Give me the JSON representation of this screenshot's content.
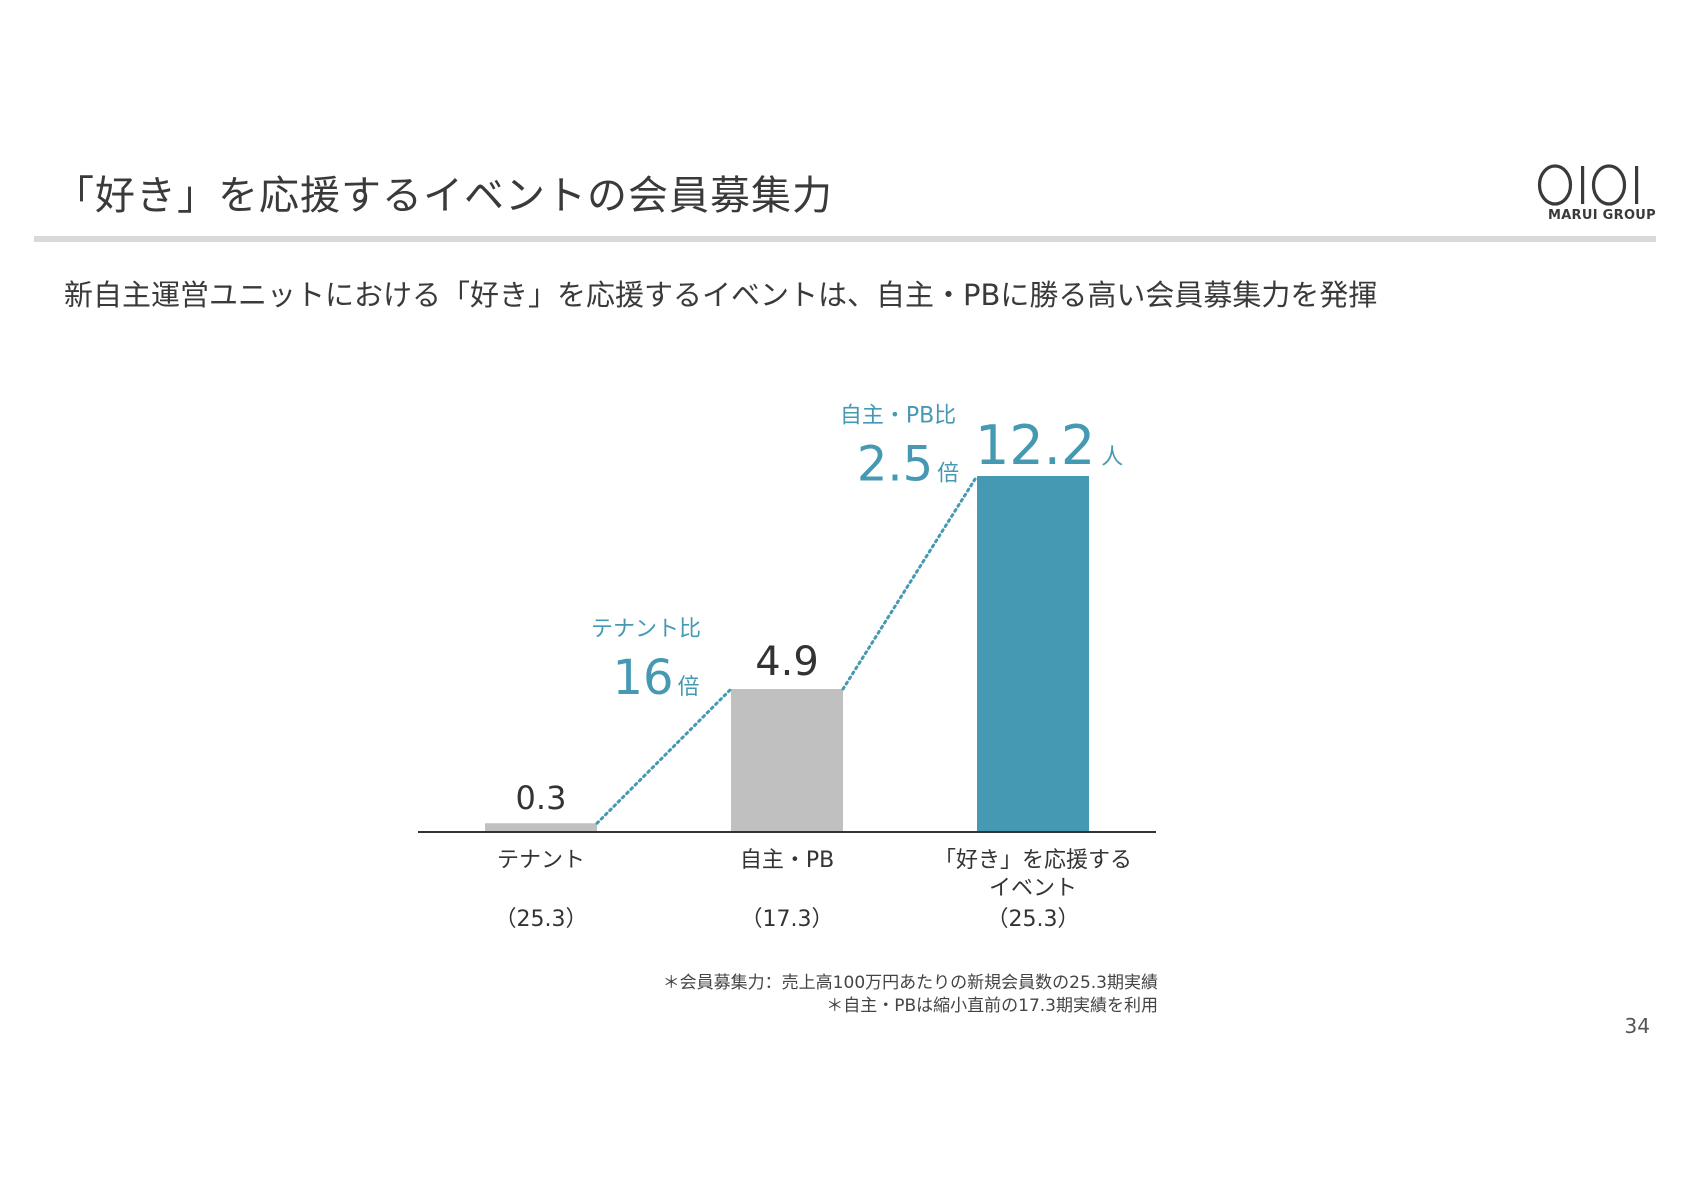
{
  "title": "「好き」を応援するイベントの会員募集力",
  "subtitle": "新自主運営ユニットにおける「好き」を応援するイベントは、自主・PBに勝る高い会員募集力を発揮",
  "logo": {
    "text": "MARUI GROUP"
  },
  "colors": {
    "gray_bar": "#c0c0c0",
    "accent": "#4699b2",
    "text": "#333333"
  },
  "chart_data": {
    "type": "bar",
    "categories": [
      [
        "テナント"
      ],
      [
        "自主・PB"
      ],
      [
        "「好き」を応援する",
        "イベント"
      ]
    ],
    "periods": [
      "（25.3）",
      "（17.3）",
      "（25.3）"
    ],
    "values": [
      0.3,
      4.9,
      12.2
    ],
    "value_labels": [
      "0.3",
      "4.9",
      "12.2"
    ],
    "unit": "人",
    "ylim": [
      0,
      12.2
    ],
    "grid": false,
    "comparisons": [
      {
        "label": "テナント比",
        "value": "16",
        "unit": "倍"
      },
      {
        "label": "自主・PB比",
        "value": "2.5",
        "unit": "倍"
      }
    ]
  },
  "footnotes": [
    "＊会員募集力：売上高100万円あたりの新規会員数の25.3期実績",
    "＊自主・PBは縮小直前の17.3期実績を利用"
  ],
  "page_number": "34"
}
